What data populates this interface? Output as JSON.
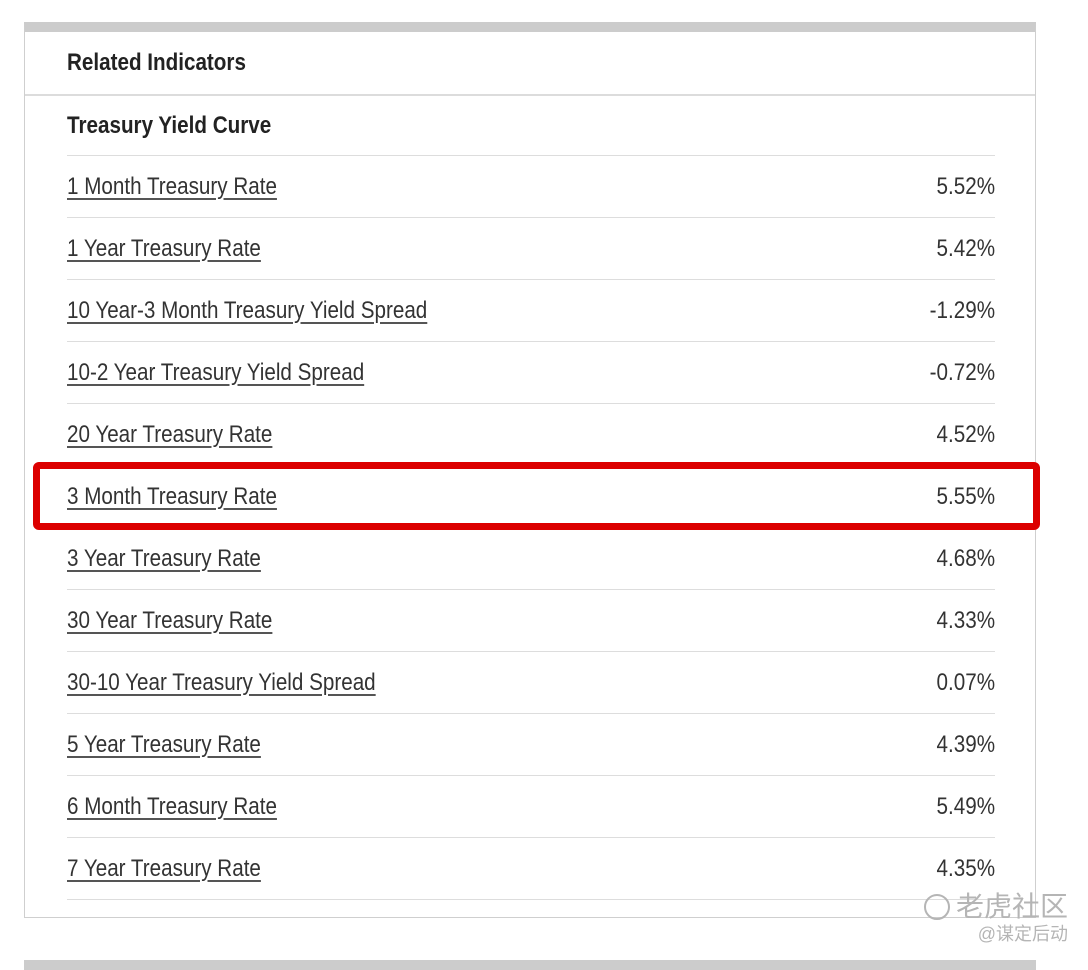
{
  "panel": {
    "title": "Related Indicators",
    "section_title": "Treasury Yield Curve",
    "rows": [
      {
        "label": "1 Month Treasury Rate",
        "value": "5.52%"
      },
      {
        "label": "1 Year Treasury Rate",
        "value": "5.42%"
      },
      {
        "label": "10 Year-3 Month Treasury Yield Spread",
        "value": "-1.29%"
      },
      {
        "label": "10-2 Year Treasury Yield Spread",
        "value": "-0.72%"
      },
      {
        "label": "20 Year Treasury Rate",
        "value": "4.52%"
      },
      {
        "label": "3 Month Treasury Rate",
        "value": "5.55%"
      },
      {
        "label": "3 Year Treasury Rate",
        "value": "4.68%"
      },
      {
        "label": "30 Year Treasury Rate",
        "value": "4.33%"
      },
      {
        "label": "30-10 Year Treasury Yield Spread",
        "value": "0.07%"
      },
      {
        "label": "5 Year Treasury Rate",
        "value": "4.39%"
      },
      {
        "label": "6 Month Treasury Rate",
        "value": "5.49%"
      },
      {
        "label": "7 Year Treasury Rate",
        "value": "4.35%"
      }
    ]
  },
  "highlight": {
    "color": "#dc0000"
  },
  "watermark": {
    "brand": "老虎社区",
    "handle": "@谋定后动",
    "icon": "tiger-logo-icon"
  }
}
